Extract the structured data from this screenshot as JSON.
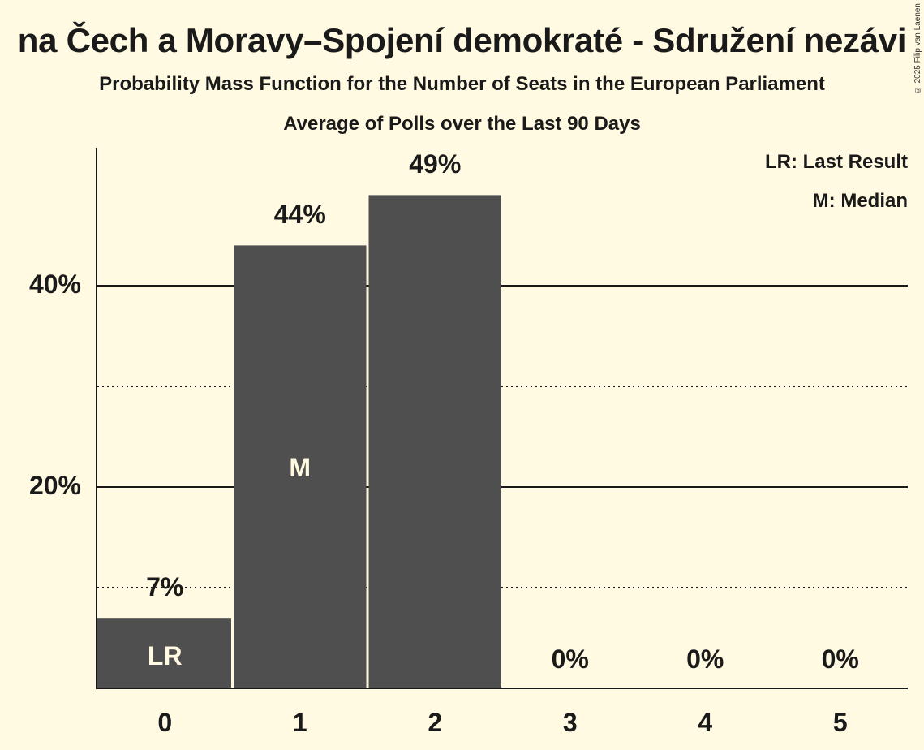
{
  "header": {
    "title": "Komunistická strana Čech a Moravy–Spojení demokraté - Sdružení nezávislých",
    "title_visible": "na Čech a Moravy–Spojení demokraté - Sdružení nezávi",
    "subtitle": "Probability Mass Function for the Number of Seats in the European Parliament",
    "subtitle2": "Average of Polls over the Last 90 Days",
    "copyright": "© 2025 Filip van Laenen"
  },
  "legend": {
    "lr": "LR: Last Result",
    "m": "M: Median"
  },
  "colors": {
    "background": "#fffae1",
    "bar": "#4f4f4f",
    "text": "#1a1a1a"
  },
  "chart_data": {
    "type": "bar",
    "title": "Komunistická strana Čech a Moravy–Spojení demokraté - Sdružení nezávislých",
    "subtitle": "Probability Mass Function for the Number of Seats in the European Parliament — Average of Polls over the Last 90 Days",
    "xlabel": "",
    "ylabel": "",
    "categories": [
      "0",
      "1",
      "2",
      "3",
      "4",
      "5"
    ],
    "values": [
      7,
      44,
      49,
      0,
      0,
      0
    ],
    "value_labels": [
      "7%",
      "44%",
      "49%",
      "0%",
      "0%",
      "0%"
    ],
    "ylim": [
      0,
      53
    ],
    "yticks": [
      {
        "value": 20,
        "label": "20%"
      },
      {
        "value": 40,
        "label": "40%"
      }
    ],
    "grid": {
      "major": [
        20,
        40
      ],
      "minor_dotted": [
        10,
        30
      ]
    },
    "annotations": [
      {
        "category": "0",
        "text": "LR",
        "meaning": "Last Result"
      },
      {
        "category": "1",
        "text": "M",
        "meaning": "Median"
      }
    ],
    "legend": [
      "LR: Last Result",
      "M: Median"
    ],
    "legend_position": "top-right"
  }
}
